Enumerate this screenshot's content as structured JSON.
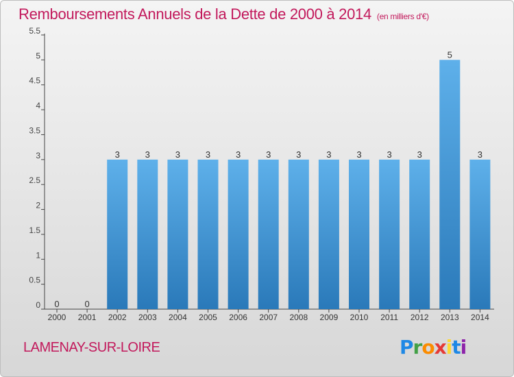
{
  "header": {
    "title": "Remboursements Annuels de la Dette de 2000 à 2014",
    "unit": "(en milliers d'€)"
  },
  "footer": {
    "town": "LAMENAY-SUR-LOIRE",
    "logo_text": "Proxiti"
  },
  "colors": {
    "title": "#c2185b",
    "bar_light": "#5eb0ea",
    "bar_dark": "#2a79b9"
  },
  "chart_data": {
    "type": "bar",
    "title": "Remboursements Annuels de la Dette de 2000 à 2014",
    "subtitle": "(en milliers d'€)",
    "categories": [
      "2000",
      "2001",
      "2002",
      "2003",
      "2004",
      "2005",
      "2006",
      "2007",
      "2008",
      "2009",
      "2010",
      "2011",
      "2012",
      "2013",
      "2014"
    ],
    "values": [
      0,
      0,
      3,
      3,
      3,
      3,
      3,
      3,
      3,
      3,
      3,
      3,
      3,
      5,
      3
    ],
    "data_labels": [
      "0",
      "0",
      "3",
      "3",
      "3",
      "3",
      "3",
      "3",
      "3",
      "3",
      "3",
      "3",
      "3",
      "5",
      "3"
    ],
    "y_ticks": [
      "0",
      "0.5",
      "1",
      "1.5",
      "2",
      "2.5",
      "3",
      "3.5",
      "4",
      "4.5",
      "5",
      "5.5"
    ],
    "ylim": [
      0,
      5.5
    ],
    "xlabel": "",
    "ylabel": "",
    "grid": false
  }
}
